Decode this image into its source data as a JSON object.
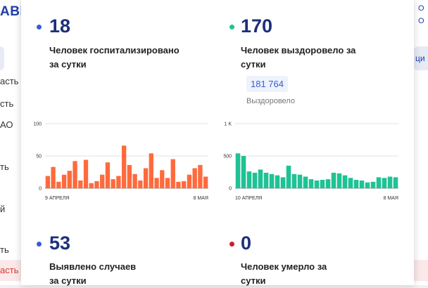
{
  "background": {
    "logo": "АВИ",
    "left_items": [
      "асть",
      "сть",
      "АО",
      "ть",
      "й",
      "ть",
      "асть"
    ],
    "left_tab_letter": "М",
    "right_letters": [
      "О",
      "О"
    ],
    "right_tab": "ци"
  },
  "stats": {
    "hospitalized": {
      "value": "18",
      "label": "Человек госпитализировано за сутки",
      "color": "#3b5bd8"
    },
    "recovered": {
      "value": "170",
      "label": "Человек выздоровело за сутки",
      "color": "#1ec295",
      "total": "181 764",
      "total_caption": "Выздоровело"
    },
    "cases": {
      "value": "53",
      "label": "Выявлено случаев за сутки",
      "color": "#3b5bd8"
    },
    "deaths": {
      "value": "0",
      "label": "Человек умерло за сутки",
      "color": "#d11a2a"
    }
  },
  "chart_data": [
    {
      "type": "bar",
      "color": "#ff6a3d",
      "ylim": [
        0,
        100
      ],
      "yticks": [
        "100",
        "50",
        "0"
      ],
      "x_start_label": "9 АПРЕЛЯ",
      "x_end_label": "8 МАЯ",
      "values": [
        19,
        33,
        10,
        21,
        27,
        42,
        12,
        44,
        8,
        11,
        21,
        40,
        14,
        19,
        66,
        36,
        22,
        12,
        31,
        54,
        16,
        28,
        16,
        45,
        10,
        11,
        21,
        31,
        36,
        18
      ]
    },
    {
      "type": "bar",
      "color": "#1ec295",
      "ylim": [
        0,
        1000
      ],
      "yticks": [
        "1 K",
        "500",
        "0"
      ],
      "x_start_label": "10 АПРЕЛЯ",
      "x_end_label": "8 МАЯ",
      "values": [
        540,
        500,
        260,
        240,
        290,
        240,
        220,
        200,
        170,
        350,
        220,
        210,
        180,
        140,
        120,
        130,
        140,
        240,
        230,
        200,
        160,
        130,
        120,
        90,
        100,
        170,
        160,
        180,
        170
      ]
    }
  ]
}
